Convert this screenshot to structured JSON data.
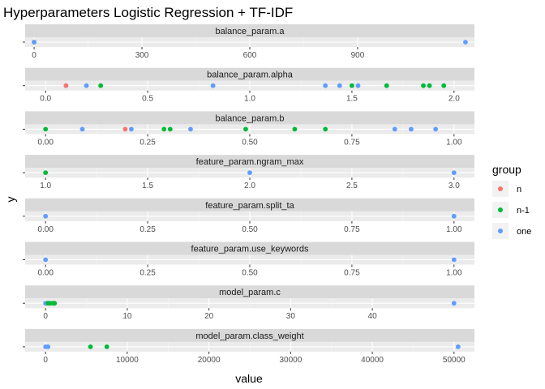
{
  "chart_data": {
    "type": "scatter",
    "title": "Hyperparameters Logistic Regression + TF-IDF",
    "xlabel": "value",
    "ylabel": "y",
    "legend": {
      "title": "group",
      "position": "right",
      "entries": [
        {
          "name": "n",
          "color": "#F8766D"
        },
        {
          "name": "n-1",
          "color": "#00BA38"
        },
        {
          "name": "one",
          "color": "#619CFF"
        }
      ]
    },
    "grid": true,
    "panels": [
      {
        "label": "balance_param.a",
        "xlim": [
          -25,
          1225
        ],
        "ticks": [
          0,
          300,
          600,
          900
        ],
        "tick_labels": [
          "0",
          "300",
          "600",
          "900"
        ],
        "points": [
          {
            "x": 0,
            "group": "n-1"
          },
          {
            "x": 0,
            "group": "one"
          },
          {
            "x": 1200,
            "group": "one"
          }
        ]
      },
      {
        "label": "balance_param.alpha",
        "xlim": [
          -0.1,
          2.1
        ],
        "ticks": [
          0.0,
          0.5,
          1.0,
          1.5,
          2.0
        ],
        "tick_labels": [
          "0.0",
          "0.5",
          "1.0",
          "1.5",
          "2.0"
        ],
        "points": [
          {
            "x": 0.1,
            "group": "one"
          },
          {
            "x": 0.1,
            "group": "n"
          },
          {
            "x": 0.2,
            "group": "one"
          },
          {
            "x": 0.27,
            "group": "n-1"
          },
          {
            "x": 0.82,
            "group": "one"
          },
          {
            "x": 1.37,
            "group": "one"
          },
          {
            "x": 1.44,
            "group": "one"
          },
          {
            "x": 1.5,
            "group": "n-1"
          },
          {
            "x": 1.53,
            "group": "one"
          },
          {
            "x": 1.67,
            "group": "n-1"
          },
          {
            "x": 1.85,
            "group": "n-1"
          },
          {
            "x": 1.88,
            "group": "n-1"
          },
          {
            "x": 1.95,
            "group": "n-1"
          }
        ]
      },
      {
        "label": "balance_param.b",
        "xlim": [
          -0.05,
          1.05
        ],
        "ticks": [
          0.0,
          0.25,
          0.5,
          0.75,
          1.0
        ],
        "tick_labels": [
          "0.00",
          "0.25",
          "0.50",
          "0.75",
          "1.00"
        ],
        "points": [
          {
            "x": 0.0,
            "group": "n-1"
          },
          {
            "x": 0.09,
            "group": "one"
          },
          {
            "x": 0.195,
            "group": "n"
          },
          {
            "x": 0.21,
            "group": "one"
          },
          {
            "x": 0.29,
            "group": "n-1"
          },
          {
            "x": 0.305,
            "group": "n-1"
          },
          {
            "x": 0.355,
            "group": "one"
          },
          {
            "x": 0.49,
            "group": "n-1"
          },
          {
            "x": 0.61,
            "group": "n-1"
          },
          {
            "x": 0.685,
            "group": "n-1"
          },
          {
            "x": 0.855,
            "group": "one"
          },
          {
            "x": 0.895,
            "group": "one"
          },
          {
            "x": 0.955,
            "group": "one"
          }
        ]
      },
      {
        "label": "feature_param.ngram_max",
        "xlim": [
          0.9,
          3.1
        ],
        "ticks": [
          1.0,
          1.5,
          2.0,
          2.5,
          3.0
        ],
        "tick_labels": [
          "1.0",
          "1.5",
          "2.0",
          "2.5",
          "3.0"
        ],
        "points": [
          {
            "x": 1,
            "group": "n-1"
          },
          {
            "x": 2,
            "group": "one"
          },
          {
            "x": 3,
            "group": "one"
          }
        ]
      },
      {
        "label": "feature_param.split_ta",
        "xlim": [
          -0.05,
          1.05
        ],
        "ticks": [
          0.0,
          0.25,
          0.5,
          0.75,
          1.0
        ],
        "tick_labels": [
          "0.00",
          "0.25",
          "0.50",
          "0.75",
          "1.00"
        ],
        "points": [
          {
            "x": 0,
            "group": "one"
          },
          {
            "x": 1,
            "group": "one"
          }
        ]
      },
      {
        "label": "feature_param.use_keywords",
        "xlim": [
          -0.05,
          1.05
        ],
        "ticks": [
          0.0,
          0.25,
          0.5,
          0.75,
          1.0
        ],
        "tick_labels": [
          "0.00",
          "0.25",
          "0.50",
          "0.75",
          "1.00"
        ],
        "points": [
          {
            "x": 0,
            "group": "one"
          },
          {
            "x": 1,
            "group": "one"
          }
        ]
      },
      {
        "label": "model_param.c",
        "xlim": [
          -2.5,
          52.5
        ],
        "ticks": [
          0,
          10,
          20,
          30,
          40
        ],
        "tick_labels": [
          "0",
          "10",
          "20",
          "30",
          "40"
        ],
        "points": [
          {
            "x": 0.0,
            "group": "one"
          },
          {
            "x": 0.3,
            "group": "n-1"
          },
          {
            "x": 0.6,
            "group": "n-1"
          },
          {
            "x": 0.9,
            "group": "n-1"
          },
          {
            "x": 1.1,
            "group": "n-1"
          },
          {
            "x": 50,
            "group": "one"
          }
        ]
      },
      {
        "label": "model_param.class_weight",
        "xlim": [
          -2500,
          52500
        ],
        "ticks": [
          0,
          10000,
          20000,
          30000,
          40000,
          50000
        ],
        "tick_labels": [
          "0",
          "10000",
          "20000",
          "30000",
          "40000",
          "50000"
        ],
        "points": [
          {
            "x": 0,
            "group": "one"
          },
          {
            "x": 300,
            "group": "one"
          },
          {
            "x": 5500,
            "group": "n-1"
          },
          {
            "x": 7500,
            "group": "n-1"
          },
          {
            "x": 50500,
            "group": "one"
          }
        ]
      }
    ]
  }
}
